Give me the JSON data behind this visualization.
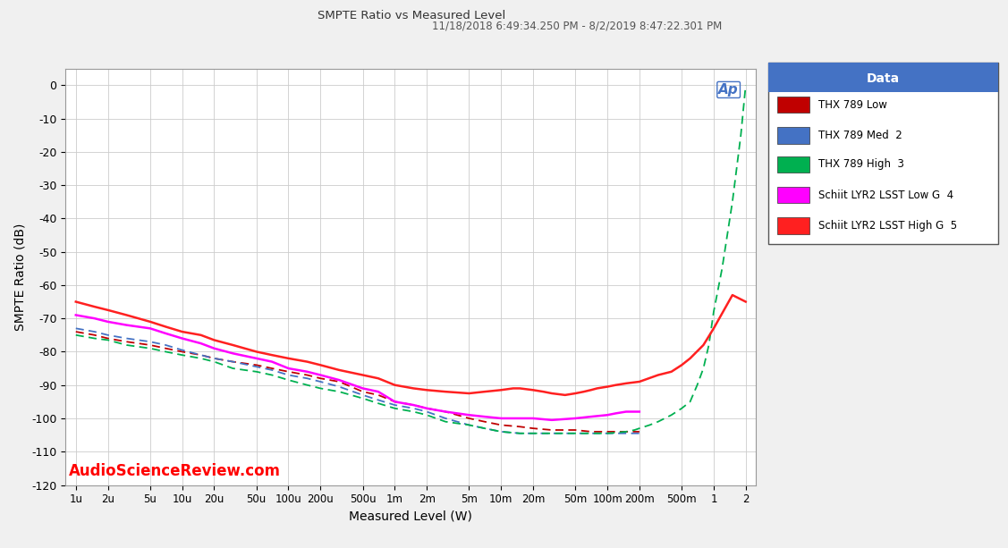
{
  "title": "SMPTE Ratio vs Measured Level",
  "subtitle": "11/18/2018 6:49:34.250 PM - 8/2/2019 8:47:22.301 PM",
  "xlabel": "Measured Level (W)",
  "ylabel": "SMPTE Ratio (dB)",
  "watermark": "AudioScienceReview.com",
  "ylim": [
    -120,
    5
  ],
  "yticks": [
    0,
    -10,
    -20,
    -30,
    -40,
    -50,
    -60,
    -70,
    -80,
    -90,
    -100,
    -110,
    -120
  ],
  "xtick_labels": [
    "1u",
    "2u",
    "5u",
    "10u",
    "20u",
    "50u",
    "100u",
    "200u",
    "500u",
    "1m",
    "2m",
    "5m",
    "10m",
    "20m",
    "50m",
    "100m",
    "200m",
    "500m",
    "1",
    "2"
  ],
  "xtick_values": [
    1e-06,
    2e-06,
    5e-06,
    1e-05,
    2e-05,
    5e-05,
    0.0001,
    0.0002,
    0.0005,
    0.001,
    0.002,
    0.005,
    0.01,
    0.02,
    0.05,
    0.1,
    0.2,
    0.5,
    1.0,
    2.0
  ],
  "background_color": "#f0f0f0",
  "plot_bg_color": "#ffffff",
  "grid_color": "#cccccc",
  "legend_title": "Data",
  "legend_title_bg": "#4472c4",
  "legend_entries": [
    {
      "label": "THX 789 Low",
      "color": "#c00000",
      "linestyle": "--",
      "linewidth": 1.3
    },
    {
      "label": "THX 789 Med  2",
      "color": "#4472c4",
      "linestyle": "--",
      "linewidth": 1.3
    },
    {
      "label": "THX 789 High  3",
      "color": "#00b050",
      "linestyle": "--",
      "linewidth": 1.3
    },
    {
      "label": "Schiit LYR2 LSST Low G  4",
      "color": "#ff00ff",
      "linestyle": "-",
      "linewidth": 1.8
    },
    {
      "label": "Schiit LYR2 LSST High G  5",
      "color": "#ff2020",
      "linestyle": "-",
      "linewidth": 1.8
    }
  ],
  "thx789_low": {
    "x": [
      1e-06,
      1.5e-06,
      2e-06,
      3e-06,
      5e-06,
      7e-06,
      1e-05,
      1.5e-05,
      2e-05,
      3e-05,
      5e-05,
      7e-05,
      0.0001,
      0.00015,
      0.0002,
      0.0003,
      0.0005,
      0.0007,
      0.001,
      0.0015,
      0.002,
      0.003,
      0.005,
      0.007,
      0.01,
      0.015,
      0.02,
      0.03,
      0.05,
      0.07,
      0.1,
      0.15,
      0.2
    ],
    "y": [
      -74,
      -75,
      -76,
      -77,
      -78,
      -79,
      -80,
      -81,
      -82,
      -83,
      -84,
      -85,
      -86,
      -87,
      -88,
      -89,
      -92,
      -93,
      -95,
      -96,
      -97,
      -98,
      -100,
      -101,
      -102,
      -102.5,
      -103,
      -103.5,
      -103.5,
      -104,
      -104,
      -104,
      -104
    ]
  },
  "thx789_med": {
    "x": [
      1e-06,
      1.5e-06,
      2e-06,
      3e-06,
      5e-06,
      7e-06,
      1e-05,
      1.5e-05,
      2e-05,
      3e-05,
      5e-05,
      7e-05,
      0.0001,
      0.00015,
      0.0002,
      0.0003,
      0.0005,
      0.0007,
      0.001,
      0.0015,
      0.002,
      0.003,
      0.005,
      0.007,
      0.01,
      0.015,
      0.02,
      0.03,
      0.05,
      0.07,
      0.1,
      0.15,
      0.2
    ],
    "y": [
      -73,
      -74,
      -75,
      -76,
      -77,
      -78,
      -79.5,
      -81,
      -82,
      -83,
      -84.5,
      -85.5,
      -87,
      -88,
      -89,
      -90.5,
      -93,
      -94.5,
      -96,
      -97,
      -98,
      -100,
      -102,
      -103,
      -104,
      -104.5,
      -104.5,
      -104.5,
      -104.5,
      -104.5,
      -104.5,
      -104.5,
      -104.5
    ]
  },
  "thx789_high": {
    "x": [
      1e-06,
      1.5e-06,
      2e-06,
      3e-06,
      5e-06,
      7e-06,
      1e-05,
      1.5e-05,
      2e-05,
      3e-05,
      5e-05,
      7e-05,
      0.0001,
      0.00015,
      0.0002,
      0.0003,
      0.0005,
      0.0007,
      0.001,
      0.0015,
      0.002,
      0.003,
      0.005,
      0.007,
      0.01,
      0.015,
      0.02,
      0.03,
      0.05,
      0.07,
      0.1,
      0.12,
      0.15,
      0.18,
      0.2,
      0.25,
      0.3,
      0.4,
      0.5,
      0.6,
      0.7,
      0.8,
      0.9,
      1.0,
      1.2,
      1.5,
      1.8,
      2.0
    ],
    "y": [
      -75,
      -76,
      -76.5,
      -78,
      -79,
      -80,
      -81,
      -82,
      -83,
      -85,
      -86,
      -87,
      -88.5,
      -90,
      -91,
      -92,
      -94,
      -95.5,
      -97,
      -98,
      -99,
      -101,
      -102,
      -103,
      -104,
      -104.5,
      -104.5,
      -104.5,
      -104.5,
      -104.5,
      -104.5,
      -104.3,
      -104,
      -103.5,
      -103,
      -102,
      -101,
      -99,
      -97,
      -95,
      -90,
      -85,
      -78,
      -68,
      -55,
      -35,
      -15,
      0
    ]
  },
  "lyr2_low": {
    "x": [
      1e-06,
      1.5e-06,
      2e-06,
      3e-06,
      5e-06,
      7e-06,
      1e-05,
      1.5e-05,
      2e-05,
      3e-05,
      5e-05,
      7e-05,
      0.0001,
      0.00015,
      0.0002,
      0.0003,
      0.0005,
      0.0007,
      0.001,
      0.0015,
      0.002,
      0.003,
      0.005,
      0.007,
      0.01,
      0.015,
      0.02,
      0.03,
      0.05,
      0.07,
      0.1,
      0.12,
      0.15,
      0.2
    ],
    "y": [
      -69,
      -70,
      -71,
      -72,
      -73,
      -74.5,
      -76,
      -77.5,
      -79,
      -80.5,
      -82,
      -83,
      -85,
      -86,
      -87,
      -88.5,
      -91,
      -92,
      -95,
      -96,
      -97,
      -98,
      -99,
      -99.5,
      -100,
      -100,
      -100,
      -100.5,
      -100,
      -99.5,
      -99,
      -98.5,
      -98,
      -98
    ]
  },
  "lyr2_high": {
    "x": [
      1e-06,
      1.5e-06,
      2e-06,
      3e-06,
      5e-06,
      7e-06,
      1e-05,
      1.5e-05,
      2e-05,
      3e-05,
      5e-05,
      7e-05,
      0.0001,
      0.00015,
      0.0002,
      0.0003,
      0.0005,
      0.0007,
      0.001,
      0.0015,
      0.002,
      0.003,
      0.005,
      0.007,
      0.01,
      0.013,
      0.015,
      0.02,
      0.025,
      0.03,
      0.04,
      0.05,
      0.06,
      0.07,
      0.08,
      0.1,
      0.12,
      0.15,
      0.2,
      0.3,
      0.4,
      0.5,
      0.6,
      0.8,
      1.0,
      1.5,
      2.0
    ],
    "y": [
      -65,
      -66.5,
      -67.5,
      -69,
      -71,
      -72.5,
      -74,
      -75,
      -76.5,
      -78,
      -80,
      -81,
      -82,
      -83,
      -84,
      -85.5,
      -87,
      -88,
      -90,
      -91,
      -91.5,
      -92,
      -92.5,
      -92,
      -91.5,
      -91,
      -91,
      -91.5,
      -92,
      -92.5,
      -93,
      -92.5,
      -92,
      -91.5,
      -91,
      -90.5,
      -90,
      -89.5,
      -89,
      -87,
      -86,
      -84,
      -82,
      -78,
      -73,
      -63,
      -65
    ]
  }
}
